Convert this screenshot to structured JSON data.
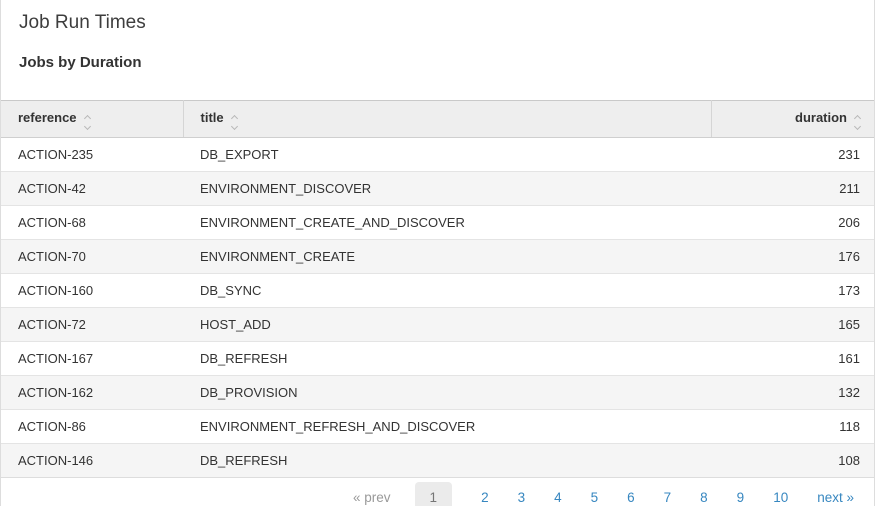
{
  "page": {
    "title": "Job Run Times",
    "subtitle": "Jobs by Duration"
  },
  "table": {
    "columns": [
      {
        "key": "reference",
        "label": "reference",
        "align": "left",
        "sortable": true
      },
      {
        "key": "title",
        "label": "title",
        "align": "left",
        "sortable": true
      },
      {
        "key": "duration",
        "label": "duration",
        "align": "right",
        "sortable": true
      }
    ],
    "rows": [
      {
        "reference": "ACTION-235",
        "title": "DB_EXPORT",
        "duration": "231"
      },
      {
        "reference": "ACTION-42",
        "title": "ENVIRONMENT_DISCOVER",
        "duration": "211"
      },
      {
        "reference": "ACTION-68",
        "title": "ENVIRONMENT_CREATE_AND_DISCOVER",
        "duration": "206"
      },
      {
        "reference": "ACTION-70",
        "title": "ENVIRONMENT_CREATE",
        "duration": "176"
      },
      {
        "reference": "ACTION-160",
        "title": "DB_SYNC",
        "duration": "173"
      },
      {
        "reference": "ACTION-72",
        "title": "HOST_ADD",
        "duration": "165"
      },
      {
        "reference": "ACTION-167",
        "title": "DB_REFRESH",
        "duration": "161"
      },
      {
        "reference": "ACTION-162",
        "title": "DB_PROVISION",
        "duration": "132"
      },
      {
        "reference": "ACTION-86",
        "title": "ENVIRONMENT_REFRESH_AND_DISCOVER",
        "duration": "118"
      },
      {
        "reference": "ACTION-146",
        "title": "DB_REFRESH",
        "duration": "108"
      }
    ]
  },
  "pagination": {
    "prev_label": "« prev",
    "next_label": "next »",
    "current_page": "1",
    "pages": [
      "1",
      "2",
      "3",
      "4",
      "5",
      "6",
      "7",
      "8",
      "9",
      "10"
    ]
  },
  "colors": {
    "link_blue": "#3787c0",
    "header_bg": "#eeeeee",
    "row_stripe": "#f5f5f5",
    "border": "#dddddd",
    "active_page_bg": "#ebebeb",
    "muted_text": "#999999",
    "body_text": "#333333"
  }
}
